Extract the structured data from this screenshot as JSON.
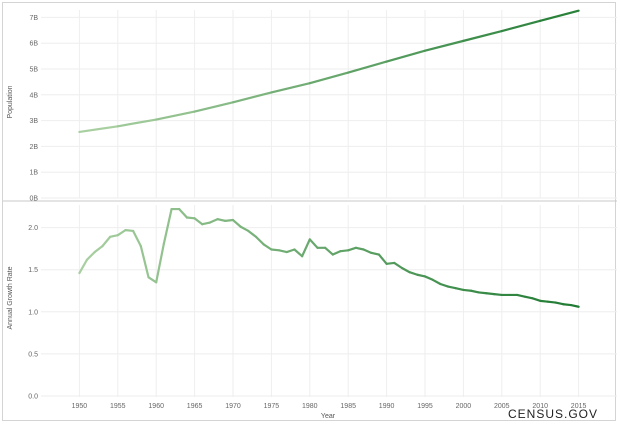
{
  "chart_data": [
    {
      "type": "line",
      "ylabel": "Population",
      "ylim": [
        0,
        7.5
      ],
      "y_ticks": [
        "0B",
        "1B",
        "2B",
        "3B",
        "4B",
        "5B",
        "6B",
        "7B"
      ],
      "x_range": [
        1945,
        2020
      ],
      "grid": true,
      "color_gradient": [
        "#a8cfa0",
        "#1e7a32"
      ],
      "series": [
        {
          "x": [
            1950,
            1955,
            1960,
            1965,
            1970,
            1975,
            1980,
            1985,
            1990,
            1995,
            2000,
            2005,
            2010,
            2015
          ],
          "values": [
            2.56,
            2.78,
            3.04,
            3.35,
            3.71,
            4.09,
            4.45,
            4.86,
            5.29,
            5.71,
            6.09,
            6.47,
            6.87,
            7.26
          ]
        }
      ]
    },
    {
      "type": "line",
      "ylabel": "Annual Growth Rate",
      "xlabel": "Year",
      "ylim": [
        0,
        2.4
      ],
      "y_ticks": [
        "0.0",
        "0.5",
        "1.0",
        "1.5",
        "2.0"
      ],
      "x_ticks": [
        "1950",
        "1955",
        "1960",
        "1965",
        "1970",
        "1975",
        "1980",
        "1985",
        "1990",
        "1995",
        "2000",
        "2005",
        "2010",
        "2015"
      ],
      "x_range": [
        1945,
        2020
      ],
      "grid": true,
      "color_gradient": [
        "#a8cfa0",
        "#1e7a32"
      ],
      "series": [
        {
          "x": [
            1950,
            1951,
            1952,
            1953,
            1954,
            1955,
            1956,
            1957,
            1958,
            1959,
            1960,
            1961,
            1962,
            1963,
            1964,
            1965,
            1966,
            1967,
            1968,
            1969,
            1970,
            1971,
            1972,
            1973,
            1974,
            1975,
            1976,
            1977,
            1978,
            1979,
            1980,
            1981,
            1982,
            1983,
            1984,
            1985,
            1986,
            1987,
            1988,
            1989,
            1990,
            1991,
            1992,
            1993,
            1994,
            1995,
            1996,
            1997,
            1998,
            1999,
            2000,
            2001,
            2002,
            2003,
            2004,
            2005,
            2006,
            2007,
            2008,
            2009,
            2010,
            2011,
            2012,
            2013,
            2014,
            2015
          ],
          "values": [
            1.46,
            1.62,
            1.71,
            1.78,
            1.89,
            1.91,
            1.97,
            1.96,
            1.78,
            1.41,
            1.35,
            1.81,
            2.22,
            2.22,
            2.12,
            2.11,
            2.04,
            2.06,
            2.1,
            2.08,
            2.09,
            2.01,
            1.96,
            1.89,
            1.8,
            1.74,
            1.73,
            1.71,
            1.74,
            1.66,
            1.86,
            1.76,
            1.76,
            1.68,
            1.72,
            1.73,
            1.76,
            1.74,
            1.7,
            1.68,
            1.57,
            1.58,
            1.52,
            1.47,
            1.44,
            1.42,
            1.38,
            1.33,
            1.3,
            1.28,
            1.26,
            1.25,
            1.23,
            1.22,
            1.21,
            1.2,
            1.2,
            1.2,
            1.18,
            1.16,
            1.13,
            1.12,
            1.11,
            1.09,
            1.08,
            1.06
          ]
        }
      ]
    }
  ],
  "branding": {
    "text": "CENSUS.GOV"
  }
}
